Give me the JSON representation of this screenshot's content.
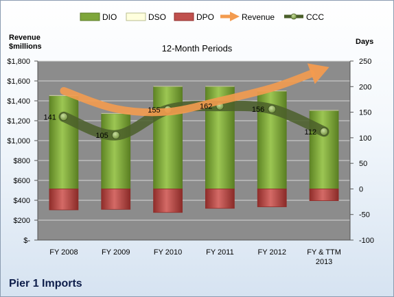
{
  "company": "Pier 1 Imports",
  "chart_data": {
    "type": "bar",
    "title": "12-Month Periods",
    "y_left_label": [
      "Revenue",
      "$millions"
    ],
    "y_right_label": "Days",
    "categories": [
      [
        "FY 2008"
      ],
      [
        "FY 2009"
      ],
      [
        "FY 2010"
      ],
      [
        "FY 2011"
      ],
      [
        "FY 2012"
      ],
      [
        "FY & TTM",
        "2013"
      ]
    ],
    "y_left": {
      "min": 0,
      "max": 1800,
      "step": 200,
      "tick_labels": [
        "$-",
        "$200",
        "$400",
        "$600",
        "$800",
        "$1,000",
        "$1,200",
        "$1,400",
        "$1,600",
        "$1,800"
      ]
    },
    "y_right": {
      "min": -100,
      "max": 250,
      "step": 50,
      "tick_labels": [
        "-100",
        "-50",
        "0",
        "50",
        "100",
        "150",
        "200",
        "250"
      ]
    },
    "series": [
      {
        "name": "DIO",
        "kind": "stacked-bar",
        "axis": "right",
        "values": [
          182,
          147,
          200,
          200,
          191,
          153
        ]
      },
      {
        "name": "DSO",
        "kind": "stacked-bar",
        "axis": "right",
        "values": [
          1,
          1,
          1,
          1,
          1,
          1
        ]
      },
      {
        "name": "DPO",
        "kind": "stacked-bar",
        "axis": "right",
        "values": [
          -41,
          -40,
          -46,
          -38,
          -35,
          -23
        ]
      },
      {
        "name": "Revenue",
        "kind": "line-arrow",
        "axis": "left",
        "values": [
          1500,
          1320,
          1290,
          1400,
          1530,
          1720
        ]
      },
      {
        "name": "CCC",
        "kind": "line",
        "axis": "right",
        "values": [
          141,
          105,
          155,
          162,
          156,
          112
        ]
      }
    ],
    "data_labels": [
      "141",
      "105",
      "155",
      "162",
      "156",
      "112"
    ],
    "legend": {
      "position": "top",
      "entries": [
        "DIO",
        "DSO",
        "DPO",
        "Revenue",
        "CCC"
      ]
    },
    "colors": {
      "DIO": "#7ea63a",
      "DSO": "#ffffdd",
      "DPO": "#c0504d",
      "Revenue": "#f39b4f",
      "CCC": "#4b5f2a",
      "plot_bg": "#8c8c8c",
      "grid": "#d6d6d6"
    },
    "grid": true
  }
}
